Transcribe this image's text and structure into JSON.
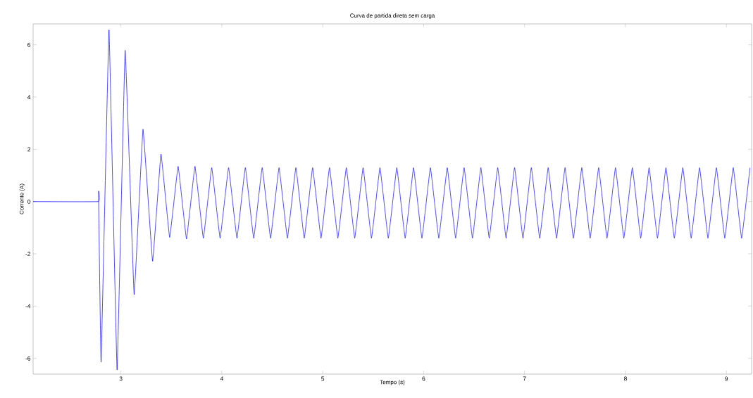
{
  "chart_data": {
    "type": "line",
    "title": "Curva de partida direta sem carga",
    "xlabel": "Tempo (s)",
    "ylabel": "Corrente (A)",
    "color": "#0000ff",
    "xlim": [
      2.13,
      9.25
    ],
    "ylim": [
      -6.6,
      6.8
    ],
    "xticks": [
      3,
      4,
      5,
      6,
      7,
      8,
      9
    ],
    "yticks": [
      -6,
      -4,
      -2,
      0,
      2,
      4,
      6
    ],
    "x": [
      2.13,
      2.776,
      2.778,
      2.804,
      2.882,
      2.962,
      3.042,
      3.131,
      3.219,
      3.314,
      3.397,
      3.483,
      3.567,
      3.65,
      3.734,
      3.817,
      3.9,
      3.983,
      4.067,
      4.15,
      4.233,
      4.316,
      4.4,
      4.483,
      4.567,
      4.65,
      4.734,
      4.817,
      4.9,
      4.983,
      5.067,
      5.15,
      5.234,
      5.317,
      5.4,
      5.483,
      5.567,
      5.65,
      5.734,
      5.817,
      5.9,
      5.983,
      6.067,
      6.15,
      6.234,
      6.317,
      6.401,
      6.484,
      6.567,
      6.65,
      6.734,
      6.817,
      6.901,
      6.984,
      7.067,
      7.15,
      7.234,
      7.317,
      7.401,
      7.484,
      7.567,
      7.65,
      7.734,
      7.817,
      7.901,
      7.984,
      8.068,
      8.151,
      8.234,
      8.317,
      8.401,
      8.484,
      8.568,
      8.651,
      8.734,
      8.817,
      8.901,
      8.984,
      9.068,
      9.151,
      9.234
    ],
    "values": [
      0,
      0,
      0.36,
      -6.14,
      6.57,
      -6.44,
      5.79,
      -3.56,
      2.77,
      -2.28,
      1.82,
      -1.37,
      1.35,
      -1.43,
      1.35,
      -1.4,
      1.3,
      -1.4,
      1.3,
      -1.4,
      1.3,
      -1.4,
      1.3,
      -1.4,
      1.3,
      -1.4,
      1.3,
      -1.4,
      1.3,
      -1.4,
      1.3,
      -1.4,
      1.3,
      -1.4,
      1.3,
      -1.4,
      1.3,
      -1.4,
      1.3,
      -1.4,
      1.3,
      -1.4,
      1.3,
      -1.4,
      1.3,
      -1.4,
      1.3,
      -1.4,
      1.3,
      -1.4,
      1.3,
      -1.4,
      1.3,
      -1.4,
      1.3,
      -1.4,
      1.3,
      -1.4,
      1.3,
      -1.4,
      1.3,
      -1.4,
      1.3,
      -1.4,
      1.3,
      -1.4,
      1.3,
      -1.4,
      1.3,
      -1.4,
      1.3,
      -1.4,
      1.3,
      -1.4,
      1.3,
      -1.4,
      1.3,
      -1.4,
      1.3,
      -1.4,
      1.3
    ]
  }
}
